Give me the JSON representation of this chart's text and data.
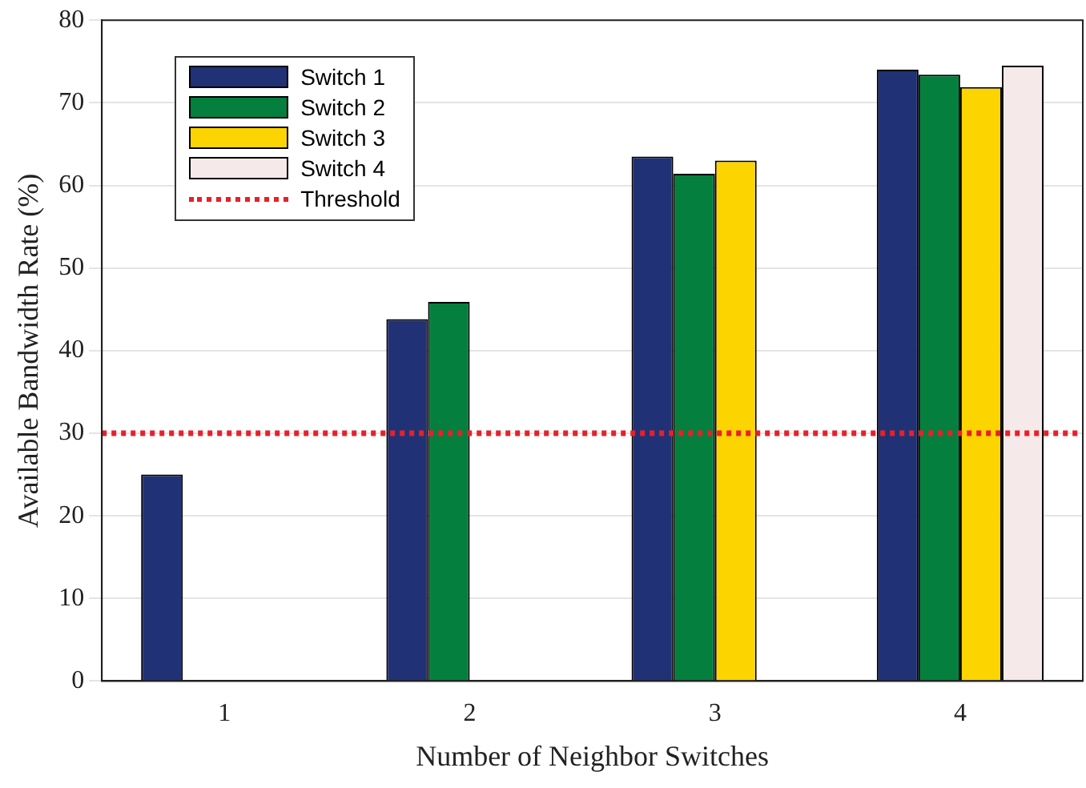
{
  "chart_data": {
    "type": "bar",
    "xlabel": "Number of Neighbor Switches",
    "ylabel": "Available Bandwidth Rate (%)",
    "categories": [
      "1",
      "2",
      "3",
      "4"
    ],
    "series": [
      {
        "name": "Switch 1",
        "color": "#213175",
        "values": [
          25,
          43.8,
          63.5,
          74
        ]
      },
      {
        "name": "Switch 2",
        "color": "#047f3e",
        "values": [
          0,
          45.9,
          61.4,
          73.4
        ]
      },
      {
        "name": "Switch 3",
        "color": "#fcd500",
        "values": [
          0,
          0,
          63,
          71.9
        ]
      },
      {
        "name": "Switch 4",
        "color": "#f6e9e9",
        "values": [
          0,
          0,
          0,
          74.5
        ]
      }
    ],
    "ylim": [
      0,
      80
    ],
    "yticks": [
      0,
      10,
      20,
      30,
      40,
      50,
      60,
      70,
      80
    ],
    "ref_lines": [
      {
        "axis": "y",
        "value": 30,
        "label": "Threshold",
        "color": "#e8202a",
        "line_style": "dotted"
      }
    ],
    "grid": "y",
    "legend": "top left"
  }
}
